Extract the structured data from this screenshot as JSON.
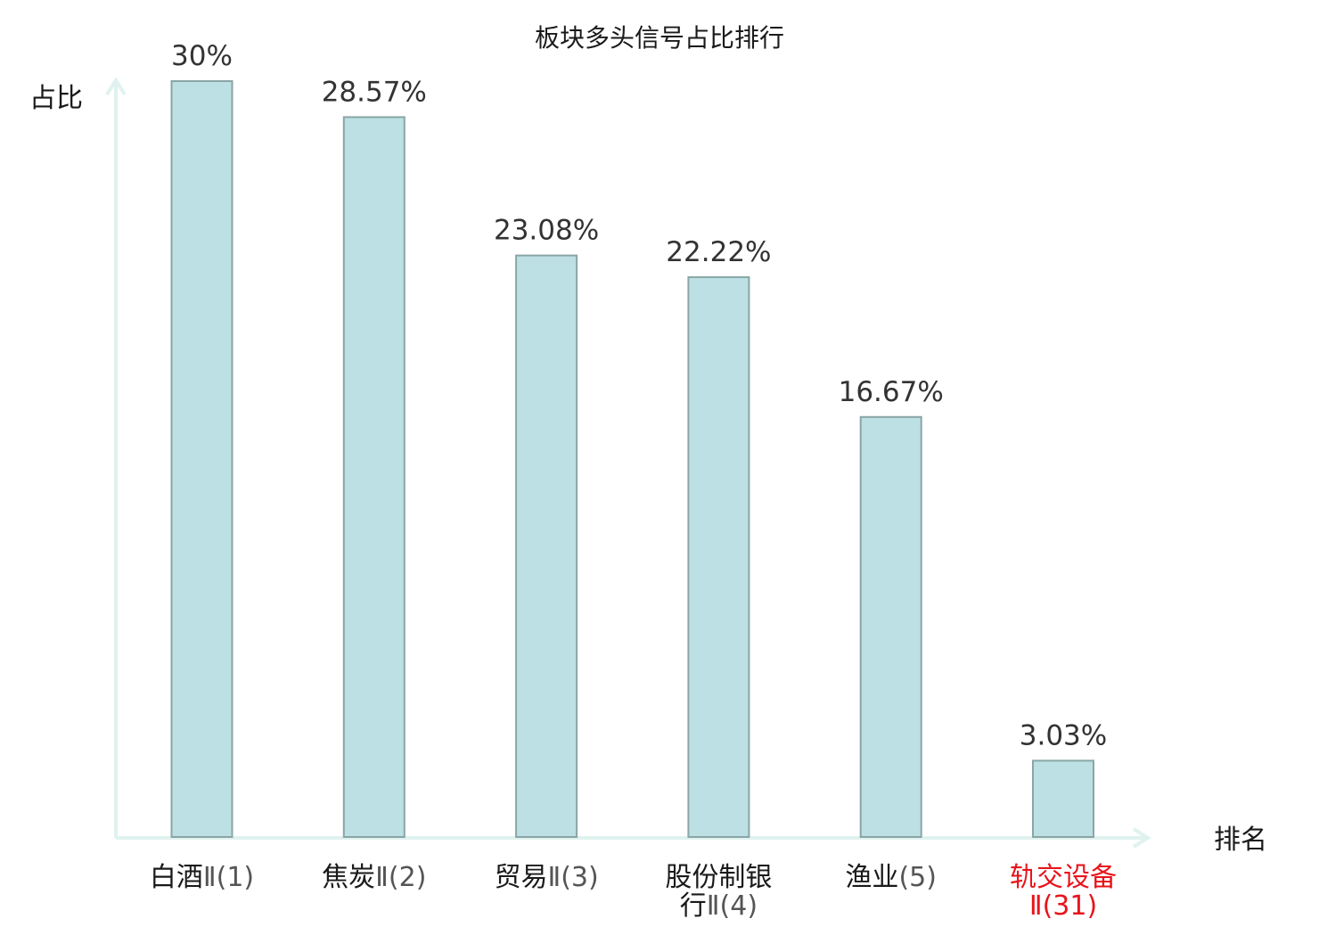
{
  "chart_data": {
    "type": "bar",
    "title": "板块多头信号占比排行",
    "ylabel": "占比",
    "xlabel": "排名",
    "ylim": [
      0,
      30
    ],
    "grid": false,
    "categories": [
      {
        "lines": [
          {
            "name": "白酒",
            "rank": "Ⅱ(1)"
          }
        ],
        "highlight": false
      },
      {
        "lines": [
          {
            "name": "焦炭",
            "rank": "Ⅱ(2)"
          }
        ],
        "highlight": false
      },
      {
        "lines": [
          {
            "name": "贸易",
            "rank": "Ⅱ(3)"
          }
        ],
        "highlight": false
      },
      {
        "lines": [
          {
            "name": "股份制银",
            "rank": ""
          },
          {
            "name": "行",
            "rank": "Ⅱ(4)"
          }
        ],
        "highlight": false
      },
      {
        "lines": [
          {
            "name": "渔业",
            "rank": "(5)"
          }
        ],
        "highlight": false
      },
      {
        "lines": [
          {
            "name": "轨交设备",
            "rank": ""
          },
          {
            "name": "",
            "rank": "Ⅱ(31)"
          }
        ],
        "highlight": true
      }
    ],
    "values": [
      30,
      28.57,
      23.08,
      22.22,
      16.67,
      3.03
    ],
    "value_labels": [
      "30%",
      "28.57%",
      "23.08%",
      "22.22%",
      "16.67%",
      "3.03%"
    ],
    "colors": {
      "bar_fill": "#bce0e3",
      "bar_stroke": "#8aa5a6",
      "axis": "#e0f2ef",
      "highlight": "#e8141b"
    }
  }
}
